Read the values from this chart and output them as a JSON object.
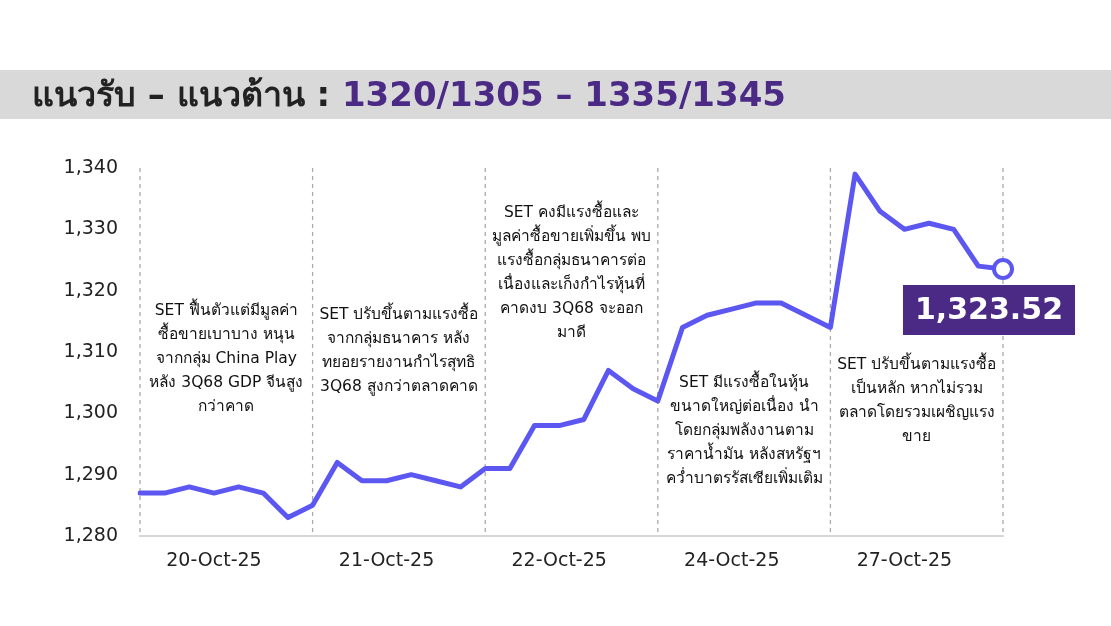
{
  "chart_data": {
    "type": "line",
    "title": "แนวรับ – แนวต้าน :",
    "subtitle": "1320/1305 – 1335/1345",
    "categories": [
      null,
      null,
      null,
      "20-Oct-25",
      null,
      null,
      null,
      null,
      null,
      null,
      "21-Oct-25",
      null,
      null,
      null,
      null,
      null,
      null,
      "22-Oct-25",
      null,
      null,
      null,
      null,
      null,
      null,
      "24-Oct-25",
      null,
      null,
      null,
      null,
      null,
      null,
      "27-Oct-25",
      null,
      null,
      null,
      null
    ],
    "series": [
      {
        "color": "#5b57f0",
        "values": [
          1287,
          1287,
          1288,
          1287,
          1288,
          1287,
          1283,
          1285,
          1292,
          1289,
          1289,
          1290,
          1289,
          1288,
          1291,
          1291,
          1298,
          1298,
          1299,
          1307,
          1304,
          1302,
          1314,
          1316,
          1317,
          1318,
          1318,
          1316,
          1314,
          1339,
          1333,
          1330,
          1331,
          1330,
          1324,
          1323.52
        ],
        "value_labels": [
          null,
          null,
          null,
          null,
          null,
          null,
          null,
          null,
          null,
          null,
          null,
          null,
          null,
          null,
          null,
          null,
          null,
          null,
          null,
          null,
          null,
          null,
          null,
          null,
          null,
          null,
          null,
          null,
          null,
          null,
          null,
          null,
          null,
          null,
          null,
          "1,323.52"
        ]
      }
    ],
    "ylim": [
      1280,
      1340
    ],
    "yticks": [
      {
        "value": 1280,
        "label": "1,280"
      },
      {
        "value": 1290,
        "label": "1,290"
      },
      {
        "value": 1300,
        "label": "1,300"
      },
      {
        "value": 1310,
        "label": "1,310"
      },
      {
        "value": 1320,
        "label": "1,320"
      },
      {
        "value": 1330,
        "label": "1,330"
      },
      {
        "value": 1340,
        "label": "1,340"
      }
    ],
    "marker": "none",
    "line_style": "solid",
    "grid": "x",
    "annotations": [
      "SET ฟื้นตัวแต่มีมูลค่าซื้อขายเบาบาง หนุนจากกลุ่ม China Play หลัง 3Q68 GDP จีนสูงกว่าคาด",
      "SET ปรับขึ้นตามแรงซื้อจากกลุ่มธนาคาร หลังทยอยรายงานกำไรสุทธิ 3Q68 สูงกว่าตลาดคาด",
      "SET คงมีแรงซื้อและมูลค่าซื้อขายเพิ่มขึ้น พบแรงซื้อกลุ่มธนาคารต่อเนื่องและเก็งกำไรหุ้นที่คาดงบ 3Q68 จะออกมาดี",
      "SET มีแรงซื้อในหุ้นขนาดใหญ่ต่อเนื่อง นำโดยกลุ่มพลังงานตามราคาน้ำมัน หลังสหรัฐฯ คว่ำบาตรรัสเซียเพิ่มเติม",
      "SET ปรับขึ้นตามแรงซื้อเป็นหลัก หากไม่รวมตลาดโดยรวมเผชิญแรงขาย"
    ]
  }
}
